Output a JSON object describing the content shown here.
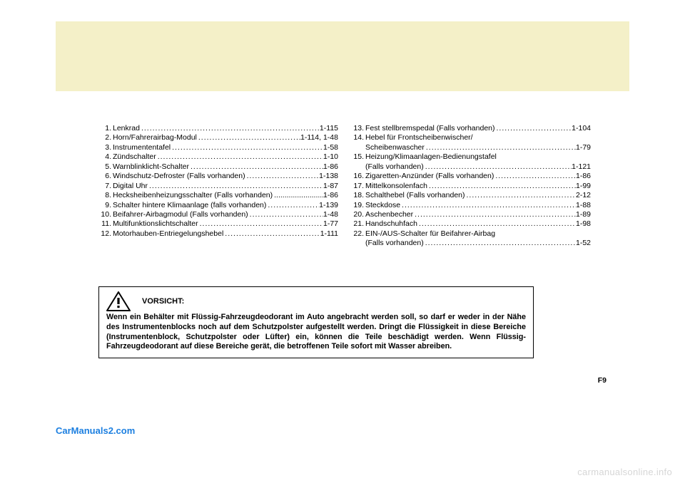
{
  "left_items": [
    {
      "num": "1.",
      "label": "Lenkrad",
      "page": "1-115"
    },
    {
      "num": "2.",
      "label": "Horn/Fahrerairbag-Modul",
      "page": "1-114, 1-48"
    },
    {
      "num": "3.",
      "label": "Instrumententafel",
      "page": "1-58"
    },
    {
      "num": "4.",
      "label": "Zündschalter",
      "page": "1-10"
    },
    {
      "num": "5.",
      "label": "Warnblinklicht-Schalter",
      "page": "1-86"
    },
    {
      "num": "6.",
      "label": "Windschutz-Defroster (Falls vorhanden)",
      "page": "1-138"
    },
    {
      "num": "7.",
      "label": "Digital Uhr",
      "page": "1-87"
    },
    {
      "num": "8.",
      "label": "Hecksheibenheizungsschalter (Falls vorhanden)",
      "page": "1-86",
      "tight": true
    },
    {
      "num": "9.",
      "label": "Schalter hintere Klimaanlage (falls vorhanden)",
      "page": "1-139"
    },
    {
      "num": "10.",
      "label": "Beifahrer-Airbagmodul (Falls vorhanden)",
      "page": "1-48"
    },
    {
      "num": "11.",
      "label": "Multifunktionslichtschalter",
      "page": "1-77"
    },
    {
      "num": "12.",
      "label": "Motorhauben-Entriegelungshebel",
      "page": "1-111"
    }
  ],
  "right_items": [
    {
      "num": "13.",
      "label": "Fest stellbremspedal (Falls vorhanden)",
      "page": "1-104"
    },
    {
      "num": "14.",
      "label": "Hebel für Frontscheibenwischer/",
      "nopage": true
    },
    {
      "num": "",
      "label": "Scheibenwascher",
      "page": "1-79",
      "indent": true
    },
    {
      "num": "15.",
      "label": "Heizung/Klimaanlagen-Bedienungstafel",
      "nopage": true
    },
    {
      "num": "",
      "label": "(Falls vorhanden)",
      "page": "1-121",
      "indent": true
    },
    {
      "num": "16.",
      "label": "Zigaretten-Anzünder (Falls vorhanden)",
      "page": "1-86"
    },
    {
      "num": "17.",
      "label": "Mittelkonsolenfach",
      "page": "1-99"
    },
    {
      "num": "18.",
      "label": "Schalthebel (Falls vorhanden)",
      "page": "2-12"
    },
    {
      "num": "19.",
      "label": "Steckdose",
      "page": "1-88"
    },
    {
      "num": "20.",
      "label": "Aschenbecher",
      "page": "1-89"
    },
    {
      "num": "21.",
      "label": "Handschuhfach",
      "page": "1-98"
    },
    {
      "num": "22.",
      "label": "EIN-/AUS-Schalter für Beifahrer-Airbag",
      "nopage": true
    },
    {
      "num": "",
      "label": "(Falls vorhanden)",
      "page": "1-52",
      "indent": true
    }
  ],
  "caution": {
    "title": "VORSICHT:",
    "body": "Wenn ein Behälter mit Flüssig-Fahrzeugdeodorant im Auto angebracht werden soll, so darf er weder in der Nähe des Instrumentenblocks noch auf dem Schutzpolster aufgestellt werden. Dringt die Flüssigkeit in diese Bereiche (Instrumentenblock, Schutzpolster oder Lüfter) ein, können die Teile beschädigt werden. Wenn Flüssig-Fahrzeugdeodorant auf diese Bereiche gerät, die betroffenen Teile sofort mit Wasser abreiben."
  },
  "page_number": "F9",
  "brand": "CarManuals2.com",
  "footer_wm": "carmanualsonline.info",
  "colors": {
    "top_band": "#f4f0c8",
    "brand": "#1c7fe0",
    "wm": "#d6d6d6"
  }
}
